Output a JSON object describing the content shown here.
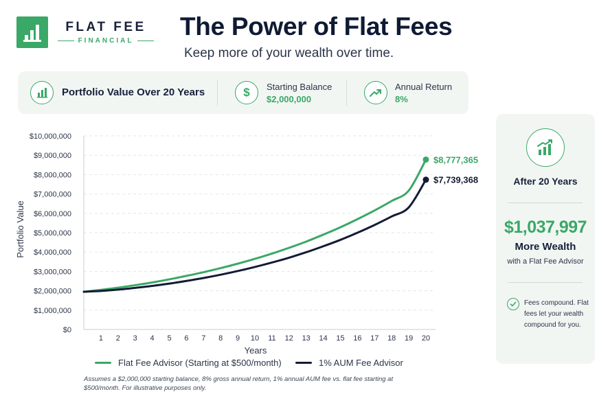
{
  "logo": {
    "name": "FLAT FEE",
    "sub": "FINANCIAL"
  },
  "header": {
    "title": "The Power of Flat Fees",
    "subtitle": "Keep more of your wealth over time."
  },
  "info": {
    "chart_label": "Portfolio Value Over 20 Years",
    "starting_balance_label": "Starting Balance",
    "starting_balance_value": "$2,000,000",
    "annual_return_label": "Annual Return",
    "annual_return_value": "8%"
  },
  "colors": {
    "flat": "#3aa867",
    "aum": "#121b33",
    "grid": "#e3e6ea"
  },
  "chart_data": {
    "type": "line",
    "xlabel": "Years",
    "ylabel": "Portfolio Value",
    "ylim": [
      0,
      10000000
    ],
    "y_ticks": [
      "$0",
      "$1,000,000",
      "$2,000,000",
      "$3,000,000",
      "$4,000,000",
      "$5,000,000",
      "$6,000,000",
      "$7,000,000",
      "$8,000,000",
      "$9,000,000",
      "$10,000,000"
    ],
    "x": [
      0,
      1,
      2,
      3,
      4,
      5,
      6,
      7,
      8,
      9,
      10,
      11,
      12,
      13,
      14,
      15,
      16,
      17,
      18,
      19,
      20
    ],
    "x_tick_labels": [
      "1",
      "2",
      "3",
      "4",
      "5",
      "6",
      "7",
      "8",
      "9",
      "10",
      "11",
      "12",
      "13",
      "14",
      "15",
      "16",
      "17",
      "18",
      "19",
      "20"
    ],
    "grid": "horizontal dashed",
    "legend_position": "bottom",
    "series": [
      {
        "name": "Flat Fee Advisor (Starting at $500/month)",
        "values": [
          1950000,
          2050000,
          2160000,
          2290000,
          2430000,
          2590000,
          2770000,
          2960000,
          3170000,
          3400000,
          3650000,
          3920000,
          4220000,
          4540000,
          4900000,
          5280000,
          5700000,
          6150000,
          6640000,
          7180000,
          8777365
        ],
        "end_label": "$8,777,365"
      },
      {
        "name": "1% AUM Fee Advisor",
        "values": [
          1950000,
          1990000,
          2060000,
          2150000,
          2250000,
          2370000,
          2510000,
          2660000,
          2830000,
          3020000,
          3230000,
          3460000,
          3710000,
          3990000,
          4300000,
          4630000,
          5000000,
          5400000,
          5840000,
          6310000,
          7739368
        ],
        "end_label": "$7,739,368"
      }
    ]
  },
  "footnote": "Assumes a $2,000,000 starting balance, 8% gross annual return, 1% annual AUM fee vs. flat fee starting at $500/month. For illustrative purposes only.",
  "panel": {
    "heading": "After 20 Years",
    "amount": "$1,037,997",
    "more": "More Wealth",
    "with": "with a Flat Fee Advisor",
    "note": "Fees compound. Flat fees let your wealth compound for you."
  }
}
